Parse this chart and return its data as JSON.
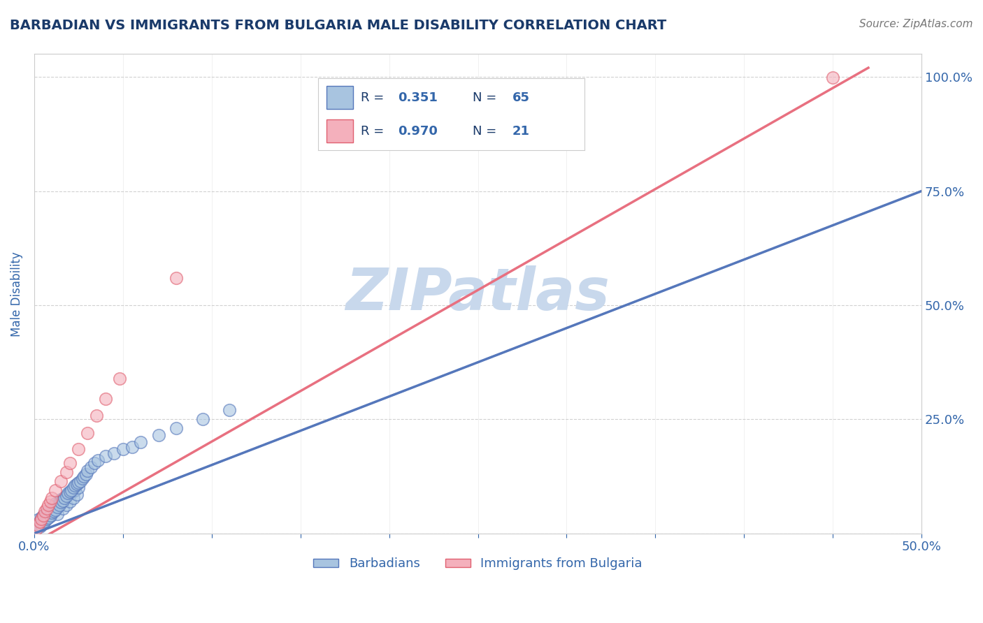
{
  "title": "BARBADIAN VS IMMIGRANTS FROM BULGARIA MALE DISABILITY CORRELATION CHART",
  "source_text": "Source: ZipAtlas.com",
  "ylabel": "Male Disability",
  "xlim": [
    0.0,
    0.5
  ],
  "ylim": [
    0.0,
    1.05
  ],
  "barbadian_R": 0.351,
  "barbadian_N": 65,
  "bulgaria_R": 0.97,
  "bulgaria_N": 21,
  "barbadian_color": "#a8c4e0",
  "barbadian_edge_color": "#5577bb",
  "bulgaria_color": "#f4b0bc",
  "bulgaria_edge_color": "#e06070",
  "barbadian_line_color": "#5577bb",
  "barbadian_dash_color": "#88aadd",
  "bulgaria_line_color": "#e87080",
  "scatter_alpha": 0.6,
  "watermark": "ZIPatlas",
  "watermark_color": "#c8d8ec",
  "title_color": "#1a3a6a",
  "axis_label_color": "#3366aa",
  "tick_color": "#3366aa",
  "source_color": "#777777",
  "legend_text_color": "#1a3a6a",
  "legend_value_color": "#3366aa",
  "barbadian_scatter_x": [
    0.001,
    0.002,
    0.003,
    0.004,
    0.005,
    0.006,
    0.007,
    0.008,
    0.009,
    0.01,
    0.011,
    0.012,
    0.013,
    0.014,
    0.015,
    0.016,
    0.017,
    0.018,
    0.019,
    0.02,
    0.021,
    0.022,
    0.023,
    0.024,
    0.025,
    0.003,
    0.004,
    0.005,
    0.006,
    0.007,
    0.008,
    0.009,
    0.01,
    0.011,
    0.012,
    0.013,
    0.014,
    0.015,
    0.016,
    0.017,
    0.018,
    0.019,
    0.02,
    0.021,
    0.022,
    0.023,
    0.024,
    0.025,
    0.026,
    0.027,
    0.028,
    0.029,
    0.03,
    0.032,
    0.034,
    0.036,
    0.04,
    0.045,
    0.05,
    0.055,
    0.06,
    0.07,
    0.08,
    0.095,
    0.11
  ],
  "barbadian_scatter_y": [
    0.02,
    0.03,
    0.025,
    0.035,
    0.04,
    0.03,
    0.045,
    0.05,
    0.038,
    0.055,
    0.06,
    0.065,
    0.042,
    0.07,
    0.075,
    0.055,
    0.08,
    0.062,
    0.085,
    0.07,
    0.09,
    0.078,
    0.095,
    0.085,
    0.1,
    0.015,
    0.018,
    0.022,
    0.028,
    0.032,
    0.035,
    0.04,
    0.045,
    0.048,
    0.052,
    0.058,
    0.062,
    0.068,
    0.072,
    0.078,
    0.082,
    0.088,
    0.092,
    0.095,
    0.1,
    0.105,
    0.108,
    0.112,
    0.115,
    0.12,
    0.125,
    0.13,
    0.138,
    0.145,
    0.155,
    0.16,
    0.17,
    0.175,
    0.185,
    0.19,
    0.2,
    0.215,
    0.23,
    0.25,
    0.27
  ],
  "bulgaria_scatter_x": [
    0.001,
    0.002,
    0.003,
    0.004,
    0.005,
    0.006,
    0.007,
    0.008,
    0.009,
    0.01,
    0.012,
    0.015,
    0.018,
    0.02,
    0.025,
    0.03,
    0.035,
    0.04,
    0.048,
    0.08,
    0.45
  ],
  "bulgaria_scatter_y": [
    0.01,
    0.018,
    0.025,
    0.032,
    0.04,
    0.048,
    0.055,
    0.062,
    0.07,
    0.078,
    0.095,
    0.115,
    0.135,
    0.155,
    0.185,
    0.22,
    0.258,
    0.295,
    0.34,
    0.56,
    0.998
  ],
  "barb_line_x0": 0.0,
  "barb_line_x1": 0.5,
  "barb_line_y0": 0.0,
  "barb_line_y1": 0.75,
  "bulg_line_x0": 0.0,
  "bulg_line_x1": 0.47,
  "bulg_line_y0": -0.02,
  "bulg_line_y1": 1.02
}
